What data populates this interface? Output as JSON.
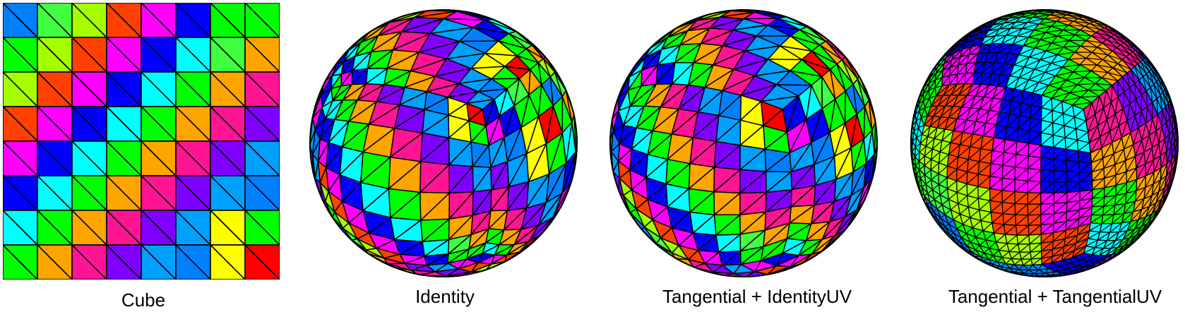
{
  "palette": [
    "#ff4000",
    "#ff00ff",
    "#a6ff00",
    "#00ff00",
    "#0000ff",
    "#00ffff",
    "#ffa500",
    "#ff1493",
    "#8000ff",
    "#00a0ff",
    "#ffff00",
    "#ff0000",
    "#40ff40",
    "#0080ff"
  ],
  "cube_grid": [
    [
      13,
      12,
      2,
      0,
      1,
      4,
      3,
      3
    ],
    [
      3,
      2,
      0,
      1,
      4,
      5,
      12,
      6
    ],
    [
      2,
      0,
      1,
      4,
      5,
      3,
      6,
      7
    ],
    [
      0,
      1,
      4,
      5,
      3,
      6,
      7,
      8
    ],
    [
      1,
      4,
      5,
      3,
      6,
      7,
      8,
      9
    ],
    [
      4,
      5,
      3,
      6,
      7,
      8,
      9,
      13
    ],
    [
      5,
      3,
      6,
      7,
      8,
      9,
      10,
      3
    ],
    [
      3,
      6,
      7,
      8,
      9,
      13,
      10,
      11
    ]
  ],
  "panels": [
    {
      "caption": "Cube"
    },
    {
      "caption": "Identity"
    },
    {
      "caption": "Tangential + IdentityUV"
    },
    {
      "caption": "Tangential + TangentialUV"
    }
  ]
}
